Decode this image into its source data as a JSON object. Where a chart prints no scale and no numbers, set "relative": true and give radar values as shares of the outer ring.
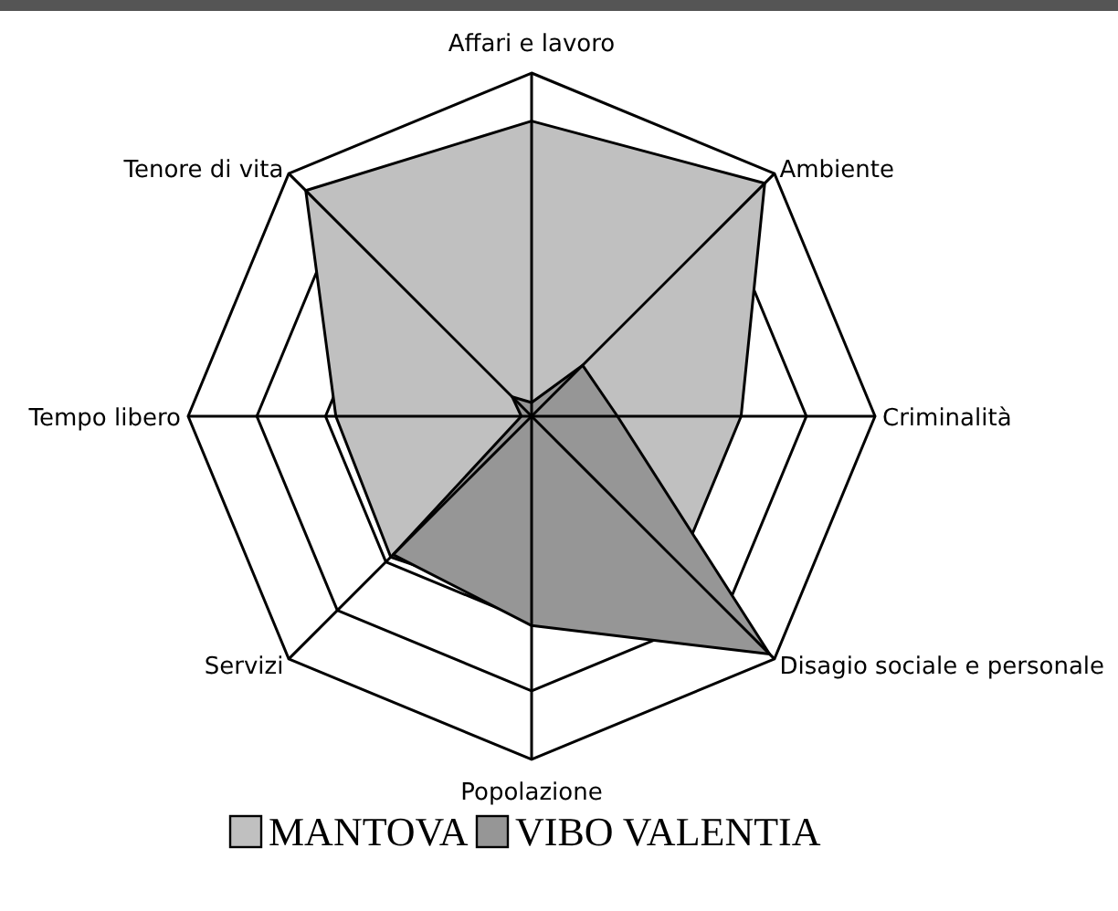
{
  "chart_data": {
    "type": "radar",
    "relative": true,
    "categories": [
      "Affari e lavoro",
      "Ambiente",
      "Criminalità",
      "Disagio sociale e personale",
      "Popolazione",
      "Servizi",
      "Tempo libero",
      "Tenore di vita"
    ],
    "grid": true,
    "legend": "bottom",
    "series": [
      {
        "name": "MANTOVA",
        "color": "#c0c0c0",
        "values": [
          0.86,
          0.96,
          0.61,
          0.61,
          0.55,
          0.58,
          0.57,
          0.93
        ]
      },
      {
        "name": "VIBO VALENTIA",
        "color": "#969696",
        "values": [
          0.04,
          0.21,
          0.25,
          0.98,
          0.61,
          0.57,
          0.03,
          0.08
        ]
      }
    ]
  }
}
